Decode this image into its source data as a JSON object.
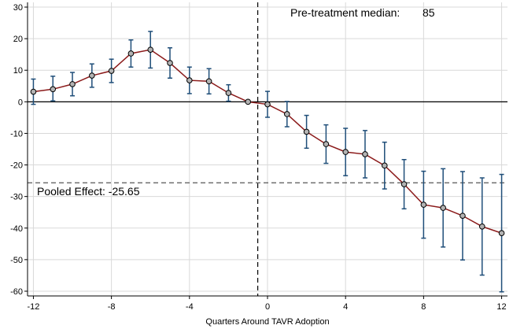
{
  "chart_data": {
    "type": "line",
    "title": "",
    "xlabel": "Quarters Around TAVR Adoption",
    "ylabel": "",
    "xlim": [
      -12.3,
      12.3
    ],
    "ylim": [
      -61.5,
      31.5
    ],
    "x_ticks": [
      -12,
      -8,
      -4,
      0,
      4,
      8,
      12
    ],
    "y_ticks": [
      30,
      20,
      10,
      0,
      -10,
      -20,
      -30,
      -40,
      -50,
      -60
    ],
    "grid": true,
    "legend": "none",
    "colors": {
      "line": "#8b1a1a",
      "marker_fill": "#b3b3b3",
      "marker_edge": "#000000",
      "error_bars": "#1f4e79",
      "grid": "#d9d9d9",
      "reference_lines": "#000000",
      "pooled_line": "#555555"
    },
    "series": [
      {
        "x": [
          -12,
          -11,
          -10,
          -9,
          -8,
          -7,
          -6,
          -5,
          -4,
          -3,
          -2,
          -1,
          0,
          1,
          2,
          3,
          4,
          5,
          6,
          7,
          8,
          9,
          10,
          11,
          12
        ],
        "values": [
          3.2,
          4.0,
          5.6,
          8.3,
          9.8,
          15.3,
          16.5,
          12.3,
          6.8,
          6.5,
          2.8,
          0,
          -0.8,
          -3.9,
          -9.5,
          -13.4,
          -15.9,
          -16.6,
          -20.2,
          -26.1,
          -32.6,
          -33.6,
          -36.1,
          -39.5,
          -41.6
        ],
        "ci_low": [
          -0.8,
          0.3,
          1.9,
          4.6,
          6.1,
          11.0,
          10.7,
          7.5,
          2.6,
          2.5,
          0.2,
          0,
          -4.9,
          -7.9,
          -14.7,
          -19.5,
          -23.4,
          -24.1,
          -27.6,
          -33.9,
          -43.2,
          -46.0,
          -50.1,
          -54.9,
          -60.2
        ],
        "ci_high": [
          7.2,
          8.1,
          9.3,
          12.0,
          13.5,
          19.6,
          22.3,
          17.1,
          11.0,
          10.5,
          5.4,
          0,
          3.3,
          0.1,
          -4.3,
          -7.3,
          -8.4,
          -9.1,
          -12.8,
          -18.3,
          -22.0,
          -21.2,
          -22.1,
          -24.1,
          -23.0
        ]
      }
    ],
    "reference_lines": {
      "horizontal_y": 0,
      "vertical_x": -0.5,
      "pooled_effect_y": -25.65
    },
    "annotations": {
      "pretreatment_label": "Pre-treatment median:",
      "pretreatment_value": "85",
      "pooled_label": "Pooled Effect: -25.65"
    }
  }
}
